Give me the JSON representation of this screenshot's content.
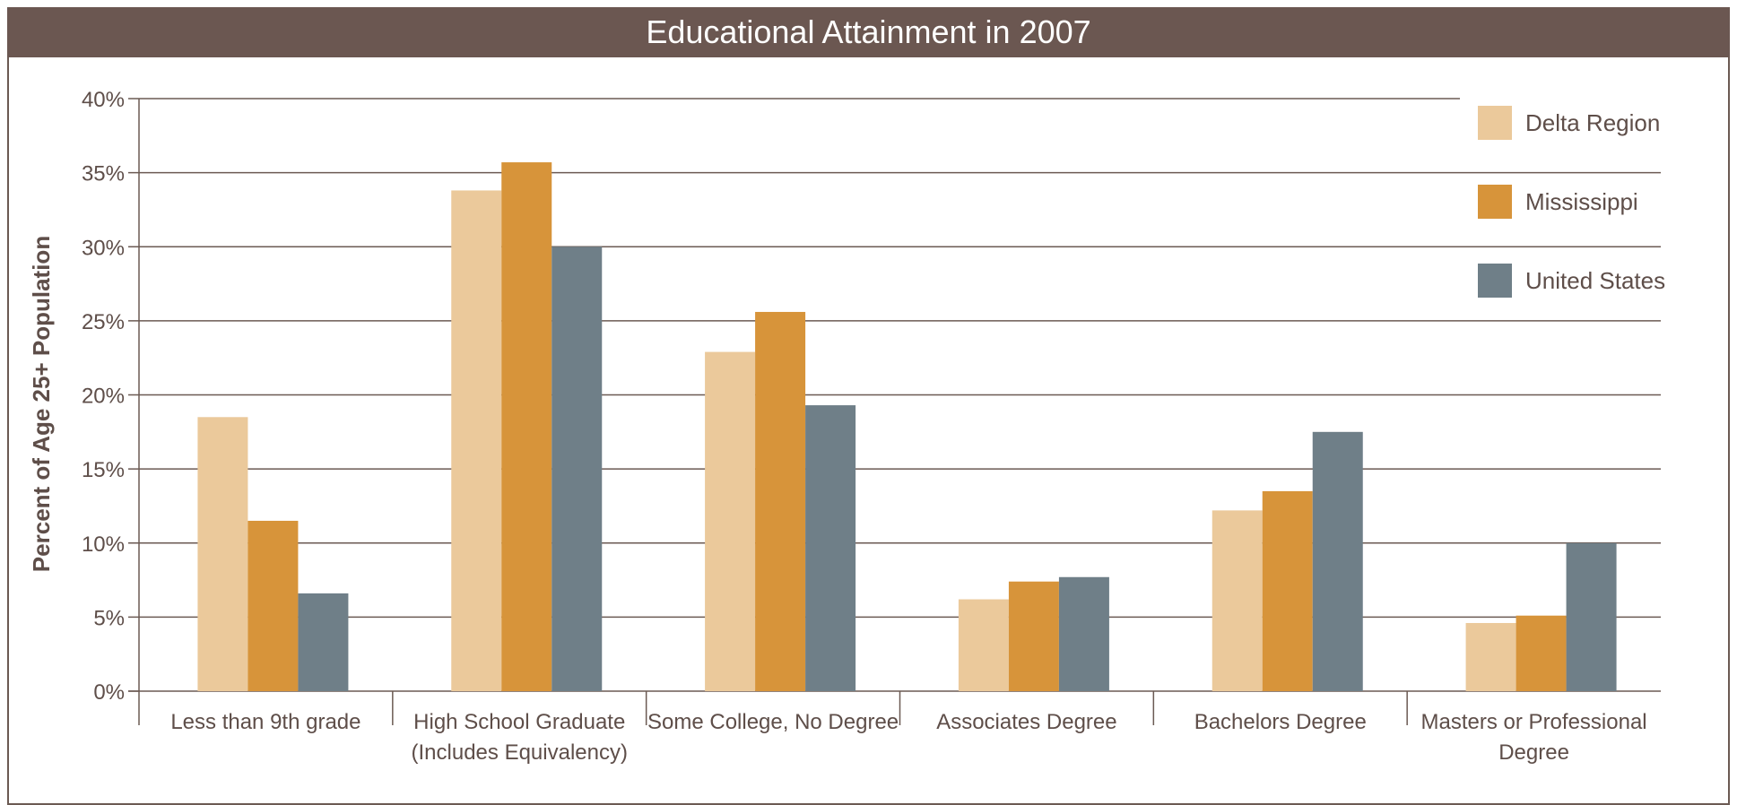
{
  "colors": {
    "header_bg": "#6b5751",
    "delta": "#ebc99b",
    "mississippi": "#d7943a",
    "united_states": "#6f7f88",
    "axis": "#6b5a53",
    "text": "#5e4e49"
  },
  "chart_data": {
    "type": "bar",
    "title": "Educational Attainment in 2007",
    "xlabel": "",
    "ylabel": "Percent of Age 25+ Population",
    "ylim": [
      0,
      40
    ],
    "yticks": [
      "0%",
      "5%",
      "10%",
      "15%",
      "20%",
      "25%",
      "30%",
      "35%",
      "40%"
    ],
    "grid": true,
    "legend_position": "top-right",
    "categories": [
      [
        "Less than 9th grade"
      ],
      [
        "High School Graduate",
        "(Includes Equivalency)"
      ],
      [
        "Some College, No Degree"
      ],
      [
        "Associates Degree"
      ],
      [
        "Bachelors Degree"
      ],
      [
        "Masters or Professional",
        "Degree"
      ]
    ],
    "series": [
      {
        "name": "Delta Region",
        "color": "#ebc99b",
        "values": [
          18.5,
          33.8,
          22.9,
          6.2,
          12.2,
          4.6
        ]
      },
      {
        "name": "Mississippi",
        "color": "#d7943a",
        "values": [
          11.5,
          35.7,
          25.6,
          7.4,
          13.5,
          5.1
        ]
      },
      {
        "name": "United States",
        "color": "#6f7f88",
        "values": [
          6.6,
          30.0,
          19.3,
          7.7,
          17.5,
          10.0
        ]
      }
    ]
  }
}
